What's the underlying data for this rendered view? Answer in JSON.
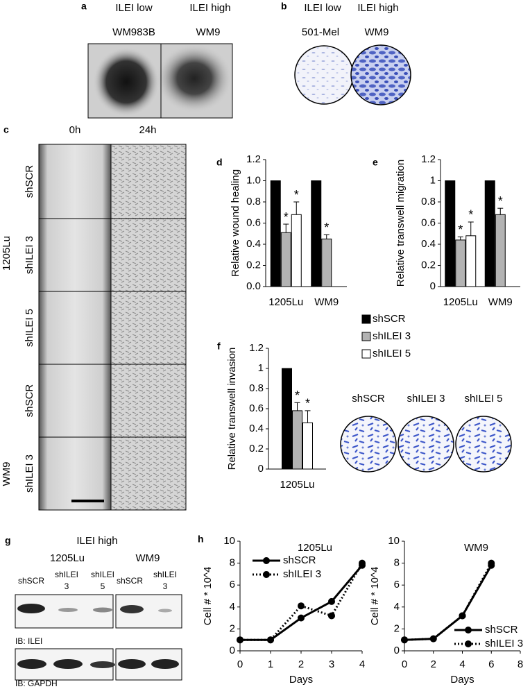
{
  "a": {
    "label": "a",
    "headers": [
      "ILEI low",
      "ILEI high"
    ],
    "lines": [
      "WM983B",
      "WM9"
    ]
  },
  "b": {
    "label": "b",
    "headers": [
      "ILEI low",
      "ILEI high"
    ],
    "lines": [
      "501-Mel",
      "WM9"
    ]
  },
  "c": {
    "label": "c",
    "times": [
      "0h",
      "24h"
    ],
    "rows": [
      "shSCR",
      "shILEI 3",
      "shILEI 5",
      "shSCR",
      "shILEI 3"
    ],
    "groups": [
      "1205Lu",
      "WM9"
    ]
  },
  "f_images": {
    "labels": [
      "shSCR",
      "shILEI 3",
      "shILEI 5"
    ]
  },
  "g": {
    "label": "g",
    "title": "ILEI high",
    "groups": [
      "1205Lu",
      "WM9"
    ],
    "lanes": [
      [
        "shSCR"
      ],
      [
        "shILEI",
        "3"
      ],
      [
        "shILEI",
        "5"
      ],
      [
        "shSCR"
      ],
      [
        "shILEI",
        "3"
      ]
    ],
    "blots": [
      "IB: ILEI",
      "IB: GAPDH"
    ]
  },
  "chart_data": [
    {
      "panel": "d",
      "type": "bar",
      "y_label": "Relative wound healing",
      "categories": [
        "1205Lu",
        "WM9"
      ],
      "series": [
        {
          "name": "shSCR",
          "color": "#000000",
          "values": [
            1,
            1
          ]
        },
        {
          "name": "shILEI 3",
          "color": "#b3b3b3",
          "values": [
            0.51,
            0.45
          ],
          "errors": [
            0.08,
            0.04
          ],
          "stars": [
            "*",
            "*"
          ]
        },
        {
          "name": "shILEI 5",
          "color": "#ffffff",
          "values": [
            0.68,
            null
          ],
          "errors": [
            0.12,
            null
          ],
          "stars": [
            "*",
            null
          ]
        }
      ],
      "ylim": [
        0,
        1.2
      ],
      "yticks": [
        {
          "value": 0,
          "label": "0.0"
        },
        0.2,
        0.4,
        0.6,
        0.8,
        {
          "value": 1,
          "label": "1.0"
        },
        1.2
      ],
      "legend": true
    },
    {
      "panel": "e",
      "type": "bar",
      "y_label": "Relative transwell migration",
      "categories": [
        "1205Lu",
        "WM9"
      ],
      "series": [
        {
          "color": "#000000",
          "values": [
            1,
            1
          ]
        },
        {
          "color": "#b3b3b3",
          "values": [
            0.44,
            0.68
          ],
          "errors": [
            0.03,
            0.06
          ],
          "stars": [
            "*",
            "*"
          ]
        },
        {
          "color": "#ffffff",
          "values": [
            0.48,
            null
          ],
          "errors": [
            0.13,
            null
          ],
          "stars": [
            "*",
            null
          ]
        }
      ],
      "ylim": [
        0,
        1.2
      ],
      "yticks": [
        0,
        0.2,
        0.4,
        0.6,
        0.8,
        1,
        1.2
      ]
    },
    {
      "panel": "f",
      "type": "bar",
      "y_label": "Relative transwell invasion",
      "categories": [
        "1205Lu"
      ],
      "series": [
        {
          "color": "#000000",
          "values": [
            1
          ]
        },
        {
          "color": "#b3b3b3",
          "values": [
            0.58
          ],
          "errors": [
            0.08
          ],
          "stars": [
            "*"
          ]
        },
        {
          "color": "#ffffff",
          "values": [
            0.46
          ],
          "errors": [
            0.12
          ],
          "stars": [
            "*"
          ]
        }
      ],
      "ylim": [
        0,
        1.2
      ],
      "yticks": [
        0,
        0.2,
        0.4,
        0.6,
        0.8,
        1,
        1.2
      ]
    },
    {
      "panel": "h",
      "type": "line",
      "title": "1205Lu",
      "x_label": "Days",
      "y_label": "Cell # * 10^4",
      "x": [
        0,
        1,
        2,
        3,
        4
      ],
      "series": [
        {
          "name": "shSCR",
          "color": "#000000",
          "dash": "solid",
          "values": [
            1,
            1,
            3,
            4.5,
            7.8
          ]
        },
        {
          "name": "shILEI 3",
          "color": "#000000",
          "dash": "dotted",
          "values": [
            1,
            1,
            4.1,
            3.2,
            8
          ]
        }
      ],
      "xlim": [
        0,
        4
      ],
      "xticks": [
        0,
        1,
        2,
        3,
        4
      ],
      "ylim": [
        0,
        10
      ],
      "yticks": [
        0,
        2,
        4,
        6,
        8,
        10
      ],
      "legend": "upper left"
    },
    {
      "type": "line",
      "title": "WM9",
      "x_label": "Days",
      "y_label": "Cell # * 10^4",
      "x": [
        0,
        2,
        4,
        6
      ],
      "series": [
        {
          "name": "shSCR",
          "color": "#000000",
          "dash": "solid",
          "values": [
            1,
            1.1,
            3.2,
            7.8
          ]
        },
        {
          "name": "shILEI 3",
          "color": "#000000",
          "dash": "dotted",
          "values": [
            1,
            1.1,
            3.2,
            8
          ]
        }
      ],
      "xlim": [
        0,
        8
      ],
      "xticks": [
        0,
        2,
        4,
        6,
        8
      ],
      "ylim": [
        0,
        10
      ],
      "yticks": [
        0,
        2,
        4,
        6,
        8,
        10
      ],
      "legend": "lower right"
    }
  ]
}
